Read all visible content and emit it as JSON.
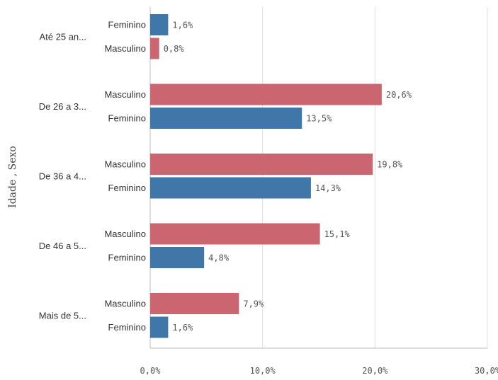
{
  "chart_data": {
    "type": "bar",
    "orientation": "horizontal",
    "ylabel": "Idade , Sexo",
    "xlim": [
      0,
      30
    ],
    "x_ticks": [
      "0,0%",
      "10,0%",
      "20,0%",
      "30,0%"
    ],
    "grid": true,
    "legend": "none",
    "colors": {
      "Feminino": "#3f77a9",
      "Masculino": "#c9666f"
    },
    "groups": [
      {
        "label": "Até 25 an...",
        "bars": [
          {
            "sex": "Feminino",
            "value": 1.6,
            "label": "1,6%"
          },
          {
            "sex": "Masculino",
            "value": 0.8,
            "label": "0,8%"
          }
        ]
      },
      {
        "label": "De 26 a 3...",
        "bars": [
          {
            "sex": "Masculino",
            "value": 20.6,
            "label": "20,6%"
          },
          {
            "sex": "Feminino",
            "value": 13.5,
            "label": "13,5%"
          }
        ]
      },
      {
        "label": "De 36 a 4...",
        "bars": [
          {
            "sex": "Masculino",
            "value": 19.8,
            "label": "19,8%"
          },
          {
            "sex": "Feminino",
            "value": 14.3,
            "label": "14,3%"
          }
        ]
      },
      {
        "label": "De 46 a 5...",
        "bars": [
          {
            "sex": "Masculino",
            "value": 15.1,
            "label": "15,1%"
          },
          {
            "sex": "Feminino",
            "value": 4.8,
            "label": "4,8%"
          }
        ]
      },
      {
        "label": "Mais de 5...",
        "bars": [
          {
            "sex": "Masculino",
            "value": 7.9,
            "label": "7,9%"
          },
          {
            "sex": "Feminino",
            "value": 1.6,
            "label": "1,6%"
          }
        ]
      }
    ]
  }
}
